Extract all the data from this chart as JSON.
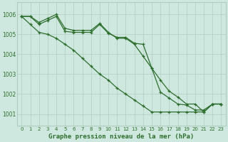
{
  "title": "Graphe pression niveau de la mer (hPa)",
  "background_color": "#cfe8df",
  "grid_color": "#b0ccbf",
  "line_color": "#2d6e2d",
  "xlim": [
    -0.5,
    23.5
  ],
  "ylim": [
    1000.4,
    1006.6
  ],
  "yticks": [
    1001,
    1002,
    1003,
    1004,
    1005,
    1006
  ],
  "xticks": [
    0,
    1,
    2,
    3,
    4,
    5,
    6,
    7,
    8,
    9,
    10,
    11,
    12,
    13,
    14,
    15,
    16,
    17,
    18,
    19,
    20,
    21,
    22,
    23
  ],
  "series": [
    [
      1005.9,
      1005.9,
      1005.5,
      1005.7,
      1005.9,
      1005.15,
      1005.1,
      1005.1,
      1005.1,
      1005.5,
      1005.05,
      1004.85,
      1004.85,
      1004.55,
      1004.5,
      1003.3,
      1002.7,
      1002.15,
      1001.85,
      1001.5,
      1001.5,
      1001.1,
      1001.5,
      1001.5
    ],
    [
      1005.9,
      1005.9,
      1005.6,
      1005.8,
      1006.0,
      1005.3,
      1005.2,
      1005.2,
      1005.2,
      1005.55,
      1005.1,
      1004.8,
      1004.8,
      1004.5,
      1003.9,
      1003.3,
      1002.1,
      1001.8,
      1001.5,
      1001.45,
      1001.2,
      1001.2,
      1001.5,
      1001.5
    ],
    [
      1005.9,
      1005.5,
      1005.1,
      1005.0,
      1004.8,
      1004.5,
      1004.2,
      1003.8,
      1003.4,
      1003.0,
      1002.7,
      1002.3,
      1002.0,
      1001.7,
      1001.4,
      1001.1,
      1001.1,
      1001.1,
      1001.1,
      1001.1,
      1001.1,
      1001.1,
      1001.5,
      1001.5
    ]
  ],
  "title_fontsize": 6.5,
  "tick_fontsize": 5.5,
  "xlabel_fontsize": 6.5
}
